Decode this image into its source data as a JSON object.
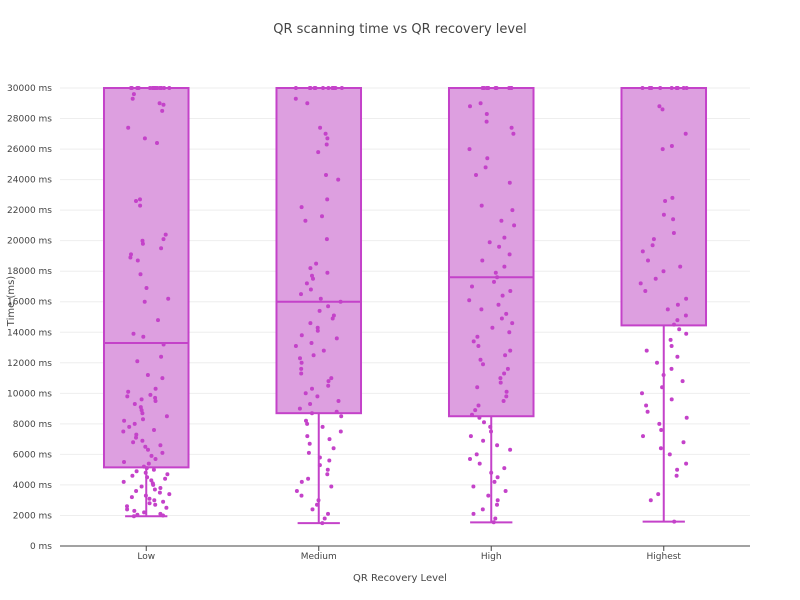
{
  "chart_data": {
    "type": "box",
    "title": "QR scanning time vs QR recovery level",
    "xlabel": "QR Recovery Level",
    "ylabel": "Time (ms)",
    "categories": [
      "Low",
      "Medium",
      "High",
      "Highest"
    ],
    "ylim": [
      0,
      30000
    ],
    "yticks": [
      0,
      2000,
      4000,
      6000,
      8000,
      10000,
      12000,
      14000,
      16000,
      18000,
      20000,
      22000,
      24000,
      26000,
      28000,
      30000
    ],
    "ytick_suffix": " ms",
    "grid": true,
    "box_color": "#c442c9",
    "box_fill": "#dd9fe0",
    "boxes": [
      {
        "name": "Low",
        "lower_fence": 1950,
        "q1": 5150,
        "median": 13300,
        "q3": 30000,
        "upper_fence": 30000
      },
      {
        "name": "Medium",
        "lower_fence": 1500,
        "q1": 8700,
        "median": 16000,
        "q3": 30000,
        "upper_fence": 30000
      },
      {
        "name": "High",
        "lower_fence": 1550,
        "q1": 8500,
        "median": 17600,
        "q3": 30000,
        "upper_fence": 30000
      },
      {
        "name": "Highest",
        "lower_fence": 1600,
        "q1": 14450,
        "median": 30000,
        "q3": 30000,
        "upper_fence": 30000
      }
    ],
    "points": [
      [
        30000,
        30000,
        30000,
        30000,
        30000,
        30000,
        30000,
        30000,
        30000,
        30000,
        30000,
        30000,
        30000,
        30000,
        30000,
        29600,
        29300,
        29000,
        28900,
        28500,
        27400,
        26700,
        26400,
        22700,
        22600,
        22300,
        20400,
        20100,
        20000,
        19800,
        19500,
        19100,
        18900,
        18700,
        17800,
        16900,
        16200,
        16000,
        14800,
        13900,
        13700,
        13200,
        12400,
        12100,
        11200,
        11000,
        10300,
        10100,
        9900,
        9800,
        9700,
        9600,
        9500,
        9300,
        9100,
        8900,
        8700,
        8500,
        8300,
        8200,
        8000,
        7800,
        7600,
        7500,
        7300,
        7100,
        6900,
        6800,
        6600,
        6500,
        6300,
        6100,
        5900,
        5700,
        5500,
        5400,
        5200,
        5100,
        5000,
        4900,
        4800,
        4700,
        4600,
        4500,
        4400,
        4300,
        4200,
        4100,
        4000,
        3900,
        3800,
        3700,
        3600,
        3500,
        3400,
        3300,
        3200,
        3100,
        3000,
        2900,
        2800,
        2700,
        2600,
        2500,
        2400,
        2300,
        2200,
        2100,
        2050,
        2000,
        1950
      ],
      [
        30000,
        30000,
        30000,
        30000,
        30000,
        30000,
        30000,
        30000,
        30000,
        30000,
        30000,
        30000,
        29300,
        29000,
        27400,
        27000,
        26700,
        26300,
        25800,
        24300,
        24000,
        22700,
        22200,
        21600,
        21300,
        20100,
        18500,
        18200,
        17900,
        17700,
        17500,
        17200,
        16800,
        16500,
        16200,
        16000,
        15700,
        15400,
        15100,
        14900,
        14600,
        14300,
        14100,
        13800,
        13600,
        13300,
        13100,
        12800,
        12500,
        12300,
        12000,
        11600,
        11300,
        11000,
        10800,
        10500,
        10300,
        10000,
        9800,
        9500,
        9300,
        9000,
        8800,
        8700,
        8500,
        8200,
        8000,
        7800,
        7500,
        7200,
        7000,
        6700,
        6400,
        6100,
        5800,
        5600,
        5300,
        5000,
        4700,
        4400,
        4200,
        3900,
        3600,
        3300,
        3000,
        2700,
        2400,
        2100,
        1800,
        1500
      ],
      [
        30000,
        30000,
        30000,
        30000,
        30000,
        30000,
        30000,
        30000,
        30000,
        30000,
        29000,
        28800,
        28300,
        27800,
        27400,
        27000,
        26000,
        25400,
        24800,
        24300,
        23800,
        22300,
        22000,
        21300,
        21000,
        20200,
        19900,
        19600,
        19100,
        18700,
        18300,
        17900,
        17600,
        17300,
        17000,
        16700,
        16400,
        16100,
        15800,
        15500,
        15200,
        14900,
        14600,
        14300,
        14000,
        13700,
        13400,
        13100,
        12800,
        12500,
        12200,
        11900,
        11600,
        11300,
        11000,
        10700,
        10400,
        10100,
        9800,
        9500,
        9200,
        8900,
        8600,
        8400,
        8100,
        7800,
        7500,
        7200,
        6900,
        6600,
        6300,
        6000,
        5700,
        5400,
        5100,
        4800,
        4500,
        4200,
        3900,
        3600,
        3300,
        3000,
        2700,
        2400,
        2100,
        1800,
        1550
      ],
      [
        30000,
        30000,
        30000,
        30000,
        30000,
        30000,
        30000,
        30000,
        30000,
        30000,
        28800,
        28600,
        27000,
        26200,
        26000,
        22800,
        22600,
        21700,
        21400,
        20500,
        20100,
        19700,
        19300,
        18700,
        18300,
        18000,
        17500,
        17200,
        16700,
        16200,
        15800,
        15500,
        15100,
        14800,
        14500,
        14200,
        13900,
        13500,
        13100,
        12800,
        12400,
        12000,
        11600,
        11200,
        10800,
        10400,
        10000,
        9600,
        9200,
        8800,
        8400,
        8000,
        7600,
        7200,
        6800,
        6400,
        6000,
        5400,
        5000,
        4600,
        3400,
        3000,
        1600
      ]
    ]
  }
}
